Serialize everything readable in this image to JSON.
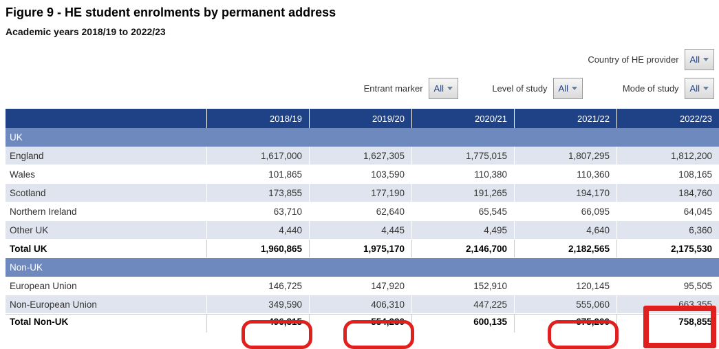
{
  "title": "Figure 9 - HE student enrolments by permanent address",
  "subtitle": "Academic years 2018/19 to 2022/23",
  "filters": {
    "country": {
      "label": "Country of HE provider",
      "value": "All"
    },
    "entrant": {
      "label": "Entrant marker",
      "value": "All"
    },
    "level": {
      "label": "Level of study",
      "value": "All"
    },
    "mode": {
      "label": "Mode of study",
      "value": "All"
    }
  },
  "table": {
    "header": [
      "2018/19",
      "2019/20",
      "2020/21",
      "2021/22",
      "2022/23"
    ],
    "sections": [
      {
        "label": "UK",
        "rows": [
          {
            "label": "England",
            "values": [
              "1,617,000",
              "1,627,305",
              "1,775,015",
              "1,807,295",
              "1,812,200"
            ]
          },
          {
            "label": "Wales",
            "values": [
              "101,865",
              "103,590",
              "110,380",
              "110,360",
              "108,165"
            ]
          },
          {
            "label": "Scotland",
            "values": [
              "173,855",
              "177,190",
              "191,265",
              "194,170",
              "184,760"
            ]
          },
          {
            "label": "Northern Ireland",
            "values": [
              "63,710",
              "62,640",
              "65,545",
              "66,095",
              "64,045"
            ]
          },
          {
            "label": "Other UK",
            "values": [
              "4,440",
              "4,445",
              "4,495",
              "4,640",
              "6,360"
            ]
          }
        ],
        "total": {
          "label": "Total UK",
          "values": [
            "1,960,865",
            "1,975,170",
            "2,146,700",
            "2,182,565",
            "2,175,530"
          ]
        }
      },
      {
        "label": "Non-UK",
        "rows": [
          {
            "label": "European Union",
            "values": [
              "146,725",
              "147,920",
              "152,910",
              "120,145",
              "95,505"
            ]
          },
          {
            "label": "Non-European Union",
            "values": [
              "349,590",
              "406,310",
              "447,225",
              "555,060",
              "663,355"
            ]
          }
        ],
        "total": {
          "label": "Total Non-UK",
          "values": [
            "496,315",
            "554,230",
            "600,135",
            "675,200",
            "758,855"
          ]
        }
      }
    ]
  },
  "annotations": {
    "red_underlined_values": [
      "496,315",
      "554,230",
      "675,200"
    ],
    "red_boxed_value": "758,855",
    "annotation_color": "#e01f1f"
  },
  "colors": {
    "header_bg": "#1f4287",
    "section_bg": "#6d89be",
    "row_alt_bg": "#dfe4ee",
    "dropdown_text": "#1f4287"
  }
}
